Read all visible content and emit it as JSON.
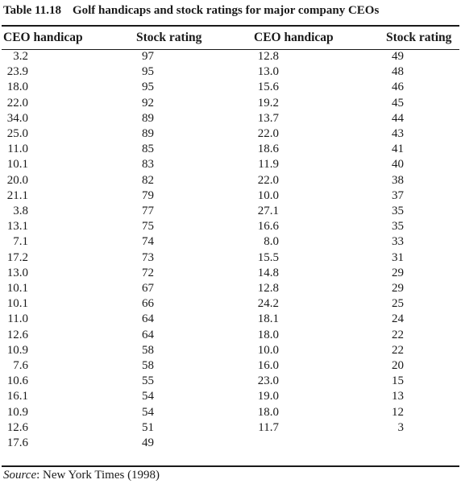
{
  "table": {
    "number": "Table 11.18",
    "title": "Golf handicaps and stock ratings for major company CEOs",
    "headers": [
      "CEO handicap",
      "Stock rating",
      "CEO handicap",
      "Stock rating"
    ],
    "rows": [
      [
        "3.2",
        "97",
        "12.8",
        "49"
      ],
      [
        "23.9",
        "95",
        "13.0",
        "48"
      ],
      [
        "18.0",
        "95",
        "15.6",
        "46"
      ],
      [
        "22.0",
        "92",
        "19.2",
        "45"
      ],
      [
        "34.0",
        "89",
        "13.7",
        "44"
      ],
      [
        "25.0",
        "89",
        "22.0",
        "43"
      ],
      [
        "11.0",
        "85",
        "18.6",
        "41"
      ],
      [
        "10.1",
        "83",
        "11.9",
        "40"
      ],
      [
        "20.0",
        "82",
        "22.0",
        "38"
      ],
      [
        "21.1",
        "79",
        "10.0",
        "37"
      ],
      [
        "3.8",
        "77",
        "27.1",
        "35"
      ],
      [
        "13.1",
        "75",
        "16.6",
        "35"
      ],
      [
        "7.1",
        "74",
        "8.0",
        "33"
      ],
      [
        "17.2",
        "73",
        "15.5",
        "31"
      ],
      [
        "13.0",
        "72",
        "14.8",
        "29"
      ],
      [
        "10.1",
        "67",
        "12.8",
        "29"
      ],
      [
        "10.1",
        "66",
        "24.2",
        "25"
      ],
      [
        "11.0",
        "64",
        "18.1",
        "24"
      ],
      [
        "12.6",
        "64",
        "18.0",
        "22"
      ],
      [
        "10.9",
        "58",
        "10.0",
        "22"
      ],
      [
        "7.6",
        "58",
        "16.0",
        "20"
      ],
      [
        "10.6",
        "55",
        "23.0",
        "15"
      ],
      [
        "16.1",
        "54",
        "19.0",
        "13"
      ],
      [
        "10.9",
        "54",
        "18.0",
        "12"
      ],
      [
        "12.6",
        "51",
        "11.7",
        "3"
      ],
      [
        "17.6",
        "49",
        "",
        ""
      ]
    ]
  },
  "source": {
    "label": "Source",
    "text": ": New York Times (1998)"
  }
}
